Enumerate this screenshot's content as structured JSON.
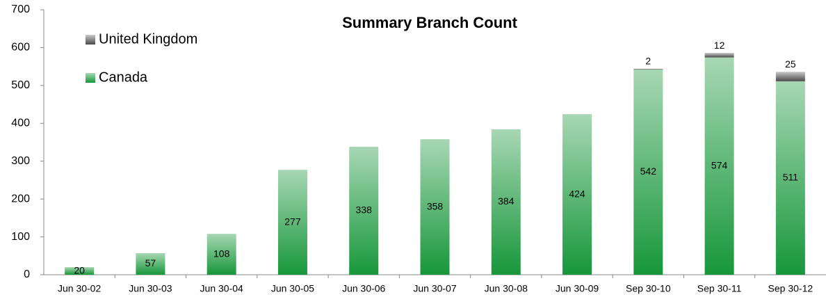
{
  "chart_data": {
    "type": "stacked_bar",
    "title": "Summary Branch Count",
    "categories": [
      "Jun 30-02",
      "Jun 30-03",
      "Jun 30-04",
      "Jun 30-05",
      "Jun 30-06",
      "Jun 30-07",
      "Jun 30-08",
      "Jun 30-09",
      "Sep 30-10",
      "Sep 30-11",
      "Sep 30-12"
    ],
    "series": [
      {
        "name": "Canada",
        "color": "#17973a",
        "values": [
          20,
          57,
          108,
          277,
          338,
          358,
          384,
          424,
          542,
          574,
          511
        ]
      },
      {
        "name": "United Kingdom",
        "color": "#4a4a4a",
        "values": [
          null,
          null,
          null,
          null,
          null,
          null,
          null,
          null,
          2,
          12,
          25
        ]
      }
    ],
    "ylim": [
      0,
      700
    ],
    "yticks": [
      0,
      100,
      200,
      300,
      400,
      500,
      600,
      700
    ],
    "grid": false
  }
}
